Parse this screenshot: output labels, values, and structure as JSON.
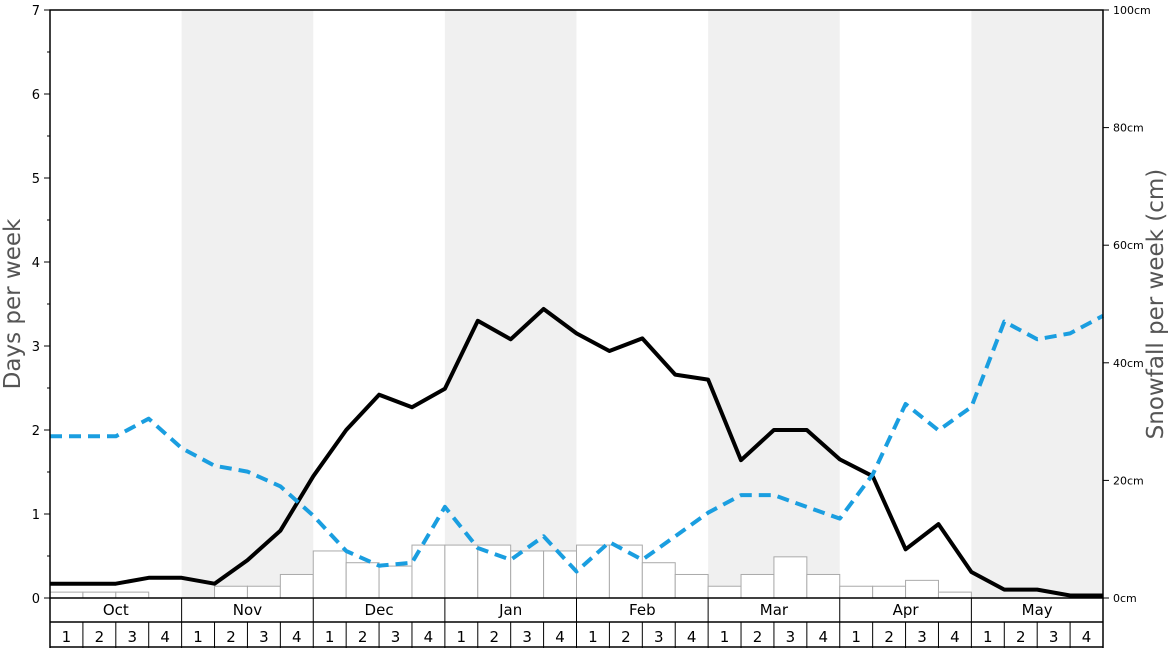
{
  "chart_data": {
    "type": "bar",
    "y_left": {
      "label": "Days per week",
      "ylim": [
        0,
        7
      ],
      "ticks": [
        "0",
        "1",
        "2",
        "3",
        "4",
        "5",
        "6",
        "7"
      ]
    },
    "y_right": {
      "label": "Snowfall per week (cm)",
      "ylim": [
        0,
        100
      ],
      "ticks": [
        "0cm",
        "20cm",
        "40cm",
        "60cm",
        "80cm",
        "100cm"
      ]
    },
    "months": [
      "Oct",
      "Nov",
      "Dec",
      "Jan",
      "Feb",
      "Mar",
      "Apr",
      "May"
    ],
    "week_labels": [
      "1",
      "2",
      "3",
      "4"
    ],
    "shaded_months": [
      "Nov",
      "Jan",
      "Mar",
      "May"
    ],
    "colors": {
      "bars": "#ffffff",
      "bar_stroke": "#aaaaaa",
      "shading": "#f0f0f0",
      "solid_line": "#000000",
      "dashed_line": "#1a9ee0"
    },
    "series": [
      {
        "kind": "bar",
        "axis": "left",
        "values": [
          0.07,
          0.07,
          0.07,
          0,
          0,
          0.14,
          0.14,
          0.28,
          0.56,
          0.42,
          0.38,
          0.63,
          0.63,
          0.63,
          0.56,
          0.56,
          0.63,
          0.63,
          0.42,
          0.28,
          0.14,
          0.28,
          0.49,
          0.28,
          0.14,
          0.14,
          0.21,
          0.07,
          0,
          0,
          0,
          0
        ]
      },
      {
        "kind": "line",
        "style": "solid",
        "axis": "left",
        "values": [
          0.17,
          0.17,
          0.17,
          0.24,
          0.24,
          0.17,
          0.45,
          0.8,
          1.45,
          2.0,
          2.42,
          2.27,
          2.49,
          3.3,
          3.08,
          3.44,
          3.15,
          2.94,
          3.09,
          2.66,
          2.6,
          1.64,
          2.0,
          2.0,
          1.65,
          1.45,
          0.58,
          0.88,
          0.31,
          0.1,
          0.1,
          0.03,
          0.03
        ]
      },
      {
        "kind": "line",
        "style": "dashed",
        "axis": "right",
        "values": [
          27.5,
          27.5,
          27.5,
          30.5,
          25.5,
          22.5,
          21.5,
          19.0,
          14.0,
          8.0,
          5.5,
          6.0,
          15.5,
          8.5,
          6.5,
          10.5,
          4.5,
          9.5,
          6.5,
          10.5,
          14.5,
          17.5,
          17.5,
          15.5,
          13.5,
          21.0,
          33.0,
          28.5,
          32.5,
          47.0,
          44.0,
          45.0,
          48.0
        ]
      }
    ]
  }
}
